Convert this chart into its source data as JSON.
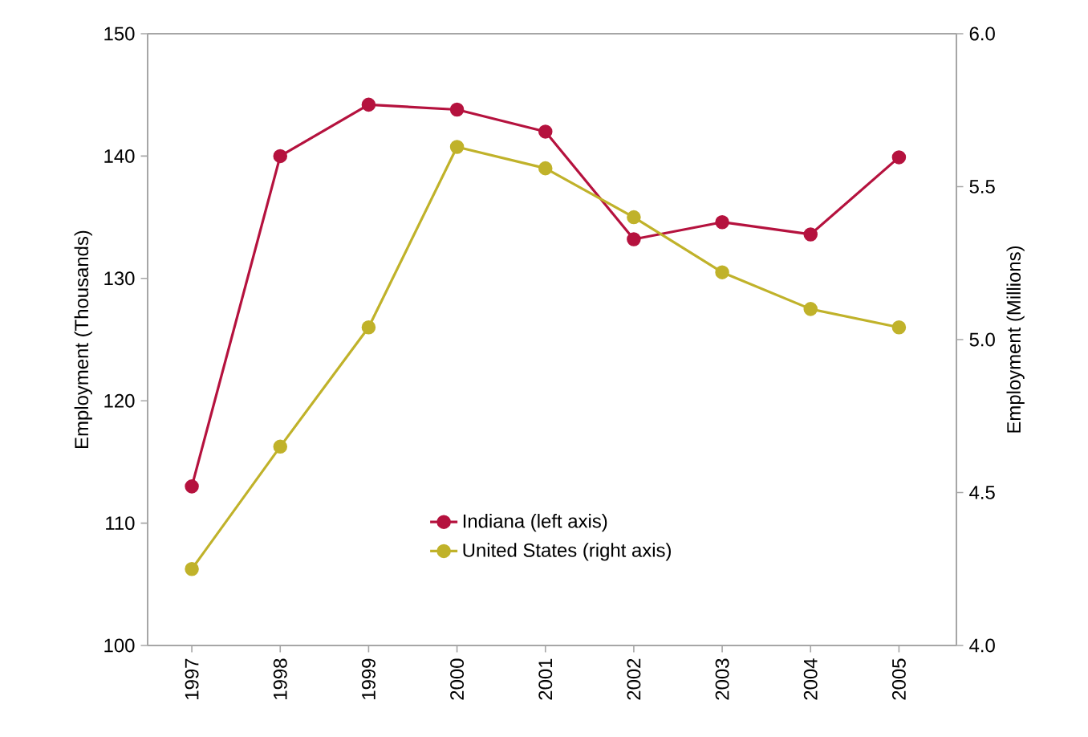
{
  "chart_data": {
    "type": "line",
    "ylabel": "Employment (Thousands)",
    "y2label": "Employment (Millions)",
    "categories": [
      "1997",
      "1998",
      "1999",
      "2000",
      "2001",
      "2002",
      "2003",
      "2004",
      "2005"
    ],
    "series": [
      {
        "name": "Indiana (left axis)",
        "color": "#b5123e",
        "axis": "y",
        "values": [
          113,
          140,
          144.2,
          143.8,
          142,
          133.2,
          134.6,
          133.6,
          139.9
        ]
      },
      {
        "name": "United States (right axis)",
        "color": "#c0b22a",
        "axis": "y2",
        "values": [
          4.25,
          4.65,
          5.04,
          5.63,
          5.56,
          5.4,
          5.22,
          5.1,
          5.04
        ]
      }
    ],
    "ylim": [
      100,
      150
    ],
    "yticks": [
      100,
      110,
      120,
      130,
      140,
      150
    ],
    "y2lim": [
      4,
      6
    ],
    "y2ticks": [
      {
        "value": 4,
        "label": "4.0"
      },
      {
        "value": 4.5,
        "label": "4.5"
      },
      {
        "value": 5,
        "label": "5.0"
      },
      {
        "value": 5.5,
        "label": "5.5"
      },
      {
        "value": 6,
        "label": "6.0"
      }
    ],
    "marker": "circle",
    "line_style": "solid",
    "legend": "bottom",
    "grid": false
  }
}
